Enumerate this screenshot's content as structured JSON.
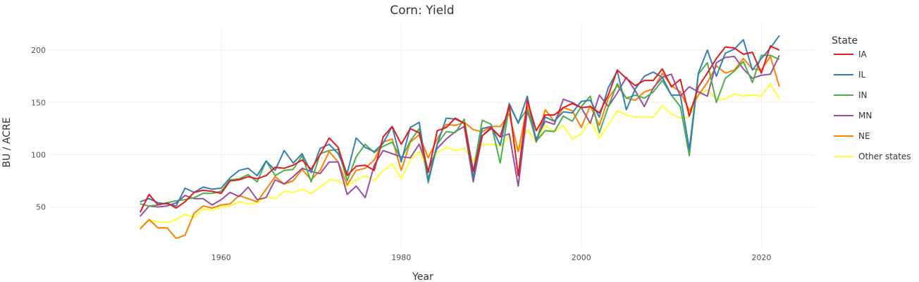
{
  "chart_data": {
    "type": "line",
    "title": "Corn: Yield",
    "xlabel": "Year",
    "ylabel": "BU / ACRE",
    "xlim": [
      1941,
      2026
    ],
    "ylim": [
      12,
      225
    ],
    "xticks": [
      1960,
      1980,
      2000,
      2020
    ],
    "yticks": [
      50,
      100,
      150,
      200
    ],
    "grid": true,
    "legend": {
      "title": "State",
      "position": "right"
    },
    "x": [
      1951,
      1952,
      1953,
      1954,
      1955,
      1956,
      1957,
      1958,
      1959,
      1960,
      1961,
      1962,
      1963,
      1964,
      1965,
      1966,
      1967,
      1968,
      1969,
      1970,
      1971,
      1972,
      1973,
      1974,
      1975,
      1976,
      1977,
      1978,
      1979,
      1980,
      1981,
      1982,
      1983,
      1984,
      1985,
      1986,
      1987,
      1988,
      1989,
      1990,
      1991,
      1992,
      1993,
      1994,
      1995,
      1996,
      1997,
      1998,
      1999,
      2000,
      2001,
      2002,
      2003,
      2004,
      2005,
      2006,
      2007,
      2008,
      2009,
      2010,
      2011,
      2012,
      2013,
      2014,
      2015,
      2016,
      2017,
      2018,
      2019,
      2020,
      2021,
      2022
    ],
    "series": [
      {
        "name": "IA",
        "color": "#e41a1c",
        "values": [
          45,
          62,
          52,
          54,
          49,
          55,
          64,
          66,
          65,
          63,
          75,
          76,
          79,
          77,
          80,
          88,
          87,
          90,
          95,
          86,
          100,
          116,
          107,
          80,
          89,
          90,
          85,
          117,
          127,
          110,
          125,
          121,
          83,
          123,
          126,
          135,
          130,
          84,
          118,
          126,
          117,
          147,
          80,
          152,
          123,
          138,
          138,
          145,
          149,
          145,
          146,
          140,
          157,
          181,
          173,
          166,
          171,
          171,
          182,
          165,
          172,
          137,
          165,
          178,
          192,
          203,
          202,
          196,
          198,
          178,
          204,
          200
        ]
      },
      {
        "name": "IL",
        "color": "#377eb8",
        "values": [
          55,
          58,
          54,
          53,
          51,
          68,
          64,
          69,
          67,
          68,
          78,
          85,
          87,
          80,
          94,
          85,
          104,
          92,
          101,
          83,
          106,
          110,
          101,
          82,
          116,
          107,
          103,
          111,
          127,
          93,
          126,
          131,
          76,
          110,
          135,
          134,
          130,
          78,
          125,
          127,
          109,
          149,
          130,
          156,
          113,
          136,
          132,
          141,
          140,
          151,
          152,
          136,
          164,
          180,
          143,
          163,
          175,
          179,
          174,
          157,
          157,
          105,
          178,
          200,
          175,
          197,
          201,
          210,
          181,
          192,
          202,
          214
        ]
      },
      {
        "name": "IN",
        "color": "#4daf4a",
        "values": [
          53,
          51,
          52,
          54,
          56,
          57,
          59,
          63,
          63,
          65,
          76,
          77,
          81,
          74,
          94,
          80,
          85,
          86,
          99,
          74,
          101,
          104,
          105,
          75,
          98,
          110,
          102,
          108,
          112,
          96,
          113,
          125,
          73,
          110,
          122,
          121,
          134,
          84,
          133,
          129,
          92,
          147,
          131,
          144,
          113,
          123,
          122,
          137,
          132,
          146,
          156,
          121,
          146,
          168,
          154,
          157,
          154,
          160,
          171,
          157,
          146,
          99,
          177,
          188,
          150,
          173,
          180,
          189,
          169,
          195,
          195,
          191
        ]
      },
      {
        "name": "MN",
        "color": "#984ea3",
        "values": [
          41,
          51,
          50,
          51,
          54,
          61,
          58,
          58,
          52,
          57,
          64,
          60,
          69,
          57,
          59,
          76,
          72,
          79,
          87,
          84,
          82,
          93,
          93,
          62,
          70,
          59,
          90,
          104,
          101,
          98,
          97,
          110,
          85,
          106,
          115,
          122,
          127,
          74,
          118,
          125,
          117,
          120,
          70,
          142,
          115,
          132,
          129,
          153,
          150,
          145,
          130,
          157,
          146,
          159,
          174,
          161,
          146,
          164,
          174,
          177,
          156,
          165,
          160,
          156,
          188,
          193,
          194,
          182,
          173,
          176,
          177,
          195
        ]
      },
      {
        "name": "NE",
        "color": "#ff7f00",
        "values": [
          29,
          38,
          30,
          30,
          20,
          23,
          44,
          51,
          49,
          52,
          53,
          61,
          58,
          55,
          67,
          79,
          72,
          75,
          86,
          76,
          85,
          103,
          93,
          71,
          85,
          87,
          95,
          112,
          115,
          85,
          112,
          119,
          97,
          115,
          129,
          128,
          131,
          124,
          122,
          127,
          127,
          139,
          103,
          147,
          112,
          143,
          132,
          145,
          142,
          126,
          147,
          128,
          154,
          166,
          154,
          152,
          160,
          163,
          178,
          166,
          160,
          142,
          157,
          169,
          185,
          178,
          181,
          192,
          182,
          181,
          194,
          165
        ]
      },
      {
        "name": "Other states",
        "color": "#ffff33",
        "values": [
          30,
          37,
          36,
          35,
          38,
          43,
          40,
          48,
          47,
          50,
          51,
          55,
          53,
          54,
          60,
          58,
          65,
          64,
          67,
          63,
          69,
          76,
          75,
          70,
          76,
          80,
          75,
          85,
          91,
          77,
          95,
          103,
          85,
          102,
          107,
          104,
          106,
          94,
          110,
          110,
          108,
          118,
          103,
          124,
          112,
          128,
          122,
          128,
          115,
          120,
          133,
          116,
          128,
          142,
          138,
          136,
          136,
          136,
          147,
          139,
          135,
          136,
          157,
          162,
          153,
          153,
          158,
          156,
          157,
          156,
          168,
          153
        ]
      }
    ]
  }
}
